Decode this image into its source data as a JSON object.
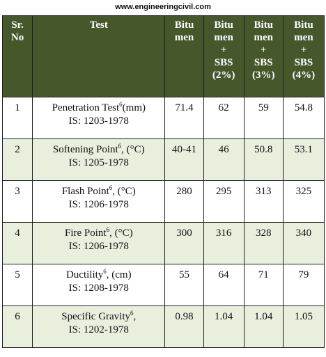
{
  "watermark": "www.engineeringcivil.com",
  "table": {
    "headers": {
      "sr": [
        "Sr.",
        "No"
      ],
      "test": [
        "Test"
      ],
      "bitumen": [
        "Bitu",
        "men"
      ],
      "sbs2": [
        "Bitu",
        "men",
        "+",
        "SBS",
        "(2%)"
      ],
      "sbs3": [
        "Bitu",
        "men",
        "+",
        "SBS",
        "(3%)"
      ],
      "sbs4": [
        "Bitu",
        "men",
        "+",
        "SBS",
        "(4%)"
      ]
    },
    "rows": [
      {
        "sr": "1",
        "test_name": "Penetration Test",
        "sup": "6",
        "test_unit": "(mm)",
        "standard": "IS: 1203-1978",
        "bitumen": "71.4",
        "sbs2": "62",
        "sbs3": "59",
        "sbs4": "54.8"
      },
      {
        "sr": "2",
        "test_name": "Softening Point",
        "sup": "6",
        "test_unit": ", (°C)",
        "standard": "IS: 1205-1978",
        "bitumen": "40-41",
        "sbs2": "46",
        "sbs3": "50.8",
        "sbs4": "53.1"
      },
      {
        "sr": "3",
        "test_name": "Flash Point",
        "sup": "6",
        "test_unit": ", (°C)",
        "standard": "IS: 1206-1978",
        "bitumen": "280",
        "sbs2": "295",
        "sbs3": "313",
        "sbs4": "325"
      },
      {
        "sr": "4",
        "test_name": "Fire Point",
        "sup": "6",
        "test_unit": ", (°C)",
        "standard": "IS: 1206-1978",
        "bitumen": "300",
        "sbs2": "316",
        "sbs3": "328",
        "sbs4": "340"
      },
      {
        "sr": "5",
        "test_name": "Ductility",
        "sup": "6",
        "test_unit": ", (cm)",
        "standard": "IS: 1208-1978",
        "bitumen": "55",
        "sbs2": "64",
        "sbs3": "71",
        "sbs4": "79"
      },
      {
        "sr": "6",
        "test_name": "Specific Gravity",
        "sup": "6",
        "test_unit": ",",
        "standard": "IS: 1202-1978",
        "bitumen": "0.98",
        "sbs2": "1.04",
        "sbs3": "1.04",
        "sbs4": "1.05"
      }
    ]
  }
}
